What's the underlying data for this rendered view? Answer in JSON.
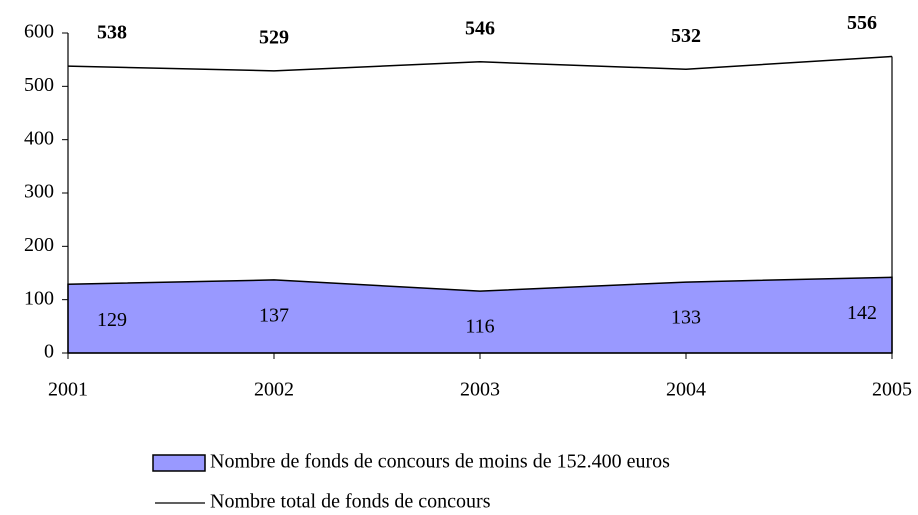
{
  "chart_data": {
    "type": "line",
    "categories": [
      "2001",
      "2002",
      "2003",
      "2004",
      "2005"
    ],
    "series": [
      {
        "name": "Nombre de fonds de concours de moins de 152.400 euros",
        "type": "area",
        "color": "#9999ff",
        "values": [
          129,
          137,
          116,
          133,
          142
        ]
      },
      {
        "name": "Nombre total de fonds de concours",
        "type": "line",
        "color": "#000000",
        "values": [
          538,
          529,
          546,
          532,
          556
        ]
      }
    ],
    "ylim": [
      0,
      600
    ],
    "yticks": [
      0,
      100,
      200,
      300,
      400,
      500,
      600
    ],
    "grid": false,
    "legend": "bottom"
  }
}
